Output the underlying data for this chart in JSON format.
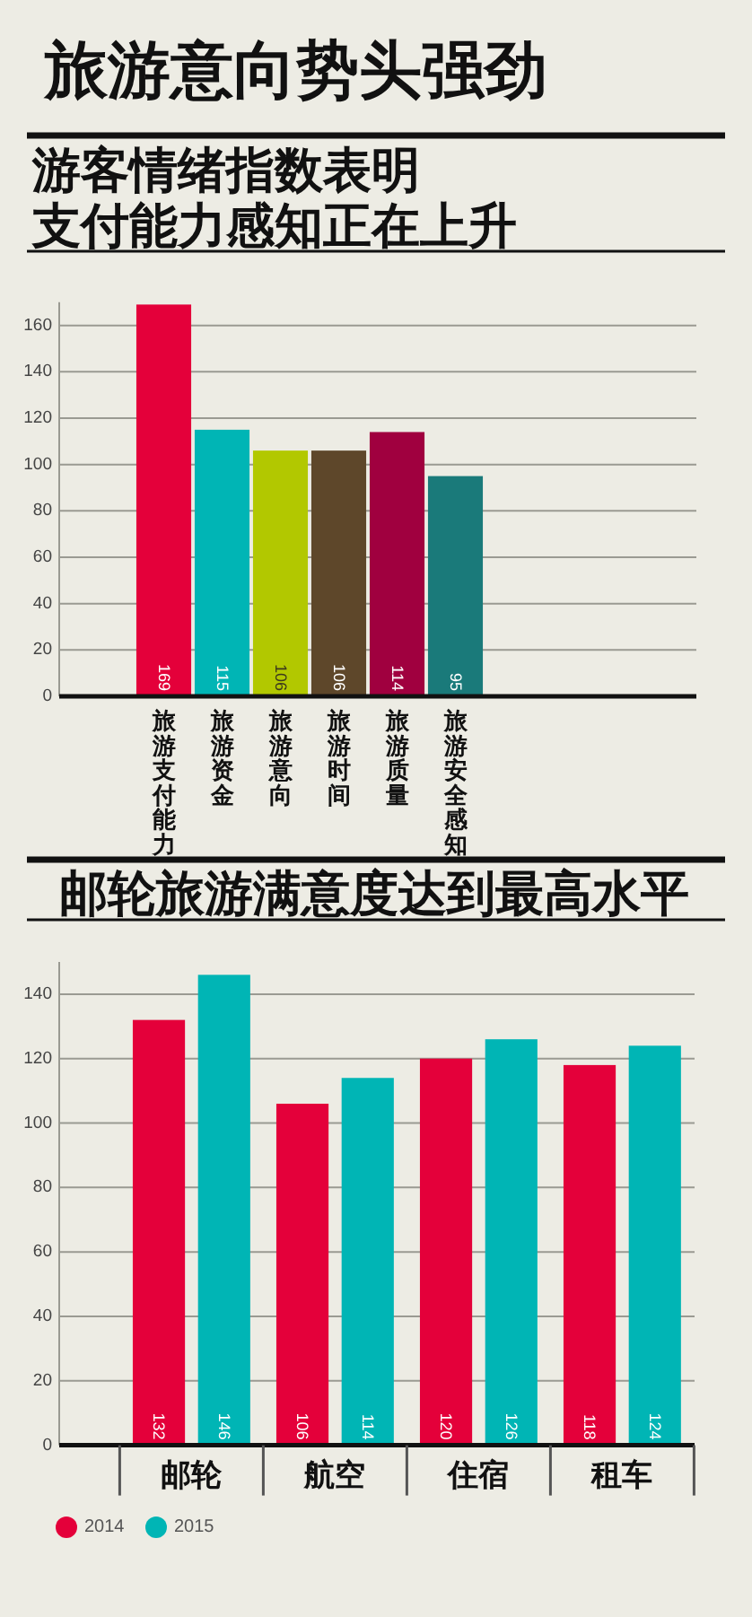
{
  "chart_data": [
    {
      "type": "bar",
      "title": "旅游意向势头强劲",
      "subtitle": "游客情绪指数表明支付能力感知正在上升",
      "categories": [
        "旅游支付能力",
        "旅游资金",
        "旅游意向",
        "旅游时间",
        "旅游质量",
        "旅游安全感知"
      ],
      "values": [
        169,
        115,
        106,
        106,
        114,
        95
      ],
      "colors": [
        "#e4003a",
        "#00b5b5",
        "#b2c800",
        "#5e472a",
        "#a0003f",
        "#1a7a7a"
      ],
      "ylim": [
        0,
        170
      ],
      "yticks": [
        0,
        20,
        40,
        60,
        80,
        100,
        120,
        140,
        160
      ],
      "grid": "y",
      "data_labels": true
    },
    {
      "type": "bar",
      "title": "邮轮旅游满意度达到最高水平",
      "categories": [
        "邮轮",
        "航空",
        "住宿",
        "租车"
      ],
      "series": [
        {
          "name": "2014",
          "color": "#e4003a",
          "values": [
            132,
            106,
            120,
            118
          ]
        },
        {
          "name": "2015",
          "color": "#00b5b5",
          "values": [
            146,
            114,
            126,
            124
          ]
        }
      ],
      "ylim": [
        0,
        150
      ],
      "yticks": [
        0,
        20,
        40,
        60,
        80,
        100,
        120,
        140
      ],
      "grid": "y",
      "legend": "bottom left",
      "data_labels": true
    }
  ]
}
